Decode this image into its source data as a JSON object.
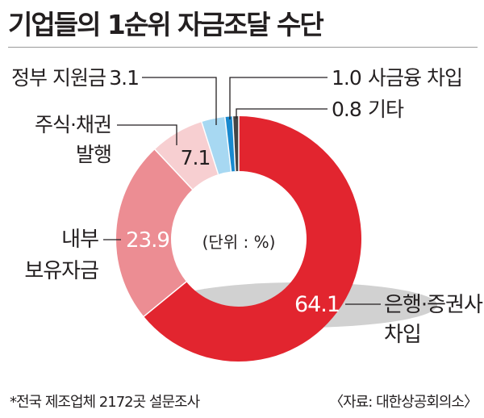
{
  "title": "기업들의 1순위 자금조달 수단",
  "unit_label": "(단위 : %)",
  "footnote": "*전국 제조업체 2172곳 설문조사",
  "source": "〈자료: 대한상공회의소〉",
  "chart_data": {
    "type": "pie",
    "variant": "donut",
    "title": "기업들의 1순위 자금조달 수단",
    "unit": "%",
    "slices": [
      {
        "label_lines": [
          "은행·증권사",
          "차입"
        ],
        "value": 64.1,
        "value_text": "64.1",
        "color": "#e2252f"
      },
      {
        "label_lines": [
          "내부",
          "보유자금"
        ],
        "value": 23.9,
        "value_text": "23.9",
        "color": "#ec8d93"
      },
      {
        "label_lines": [
          "주식·채권",
          "발행"
        ],
        "value": 7.1,
        "value_text": "7.1",
        "color": "#f7cfd1"
      },
      {
        "label_lines": [
          "정부 지원금"
        ],
        "value": 3.1,
        "value_text": "3.1",
        "color": "#a7d8f2"
      },
      {
        "label_lines": [
          "사금융 차입"
        ],
        "value": 1.0,
        "value_text": "1.0",
        "color": "#1889cf"
      },
      {
        "label_lines": [
          "기타"
        ],
        "value": 0.8,
        "value_text": "0.8",
        "color": "#444444"
      }
    ]
  }
}
